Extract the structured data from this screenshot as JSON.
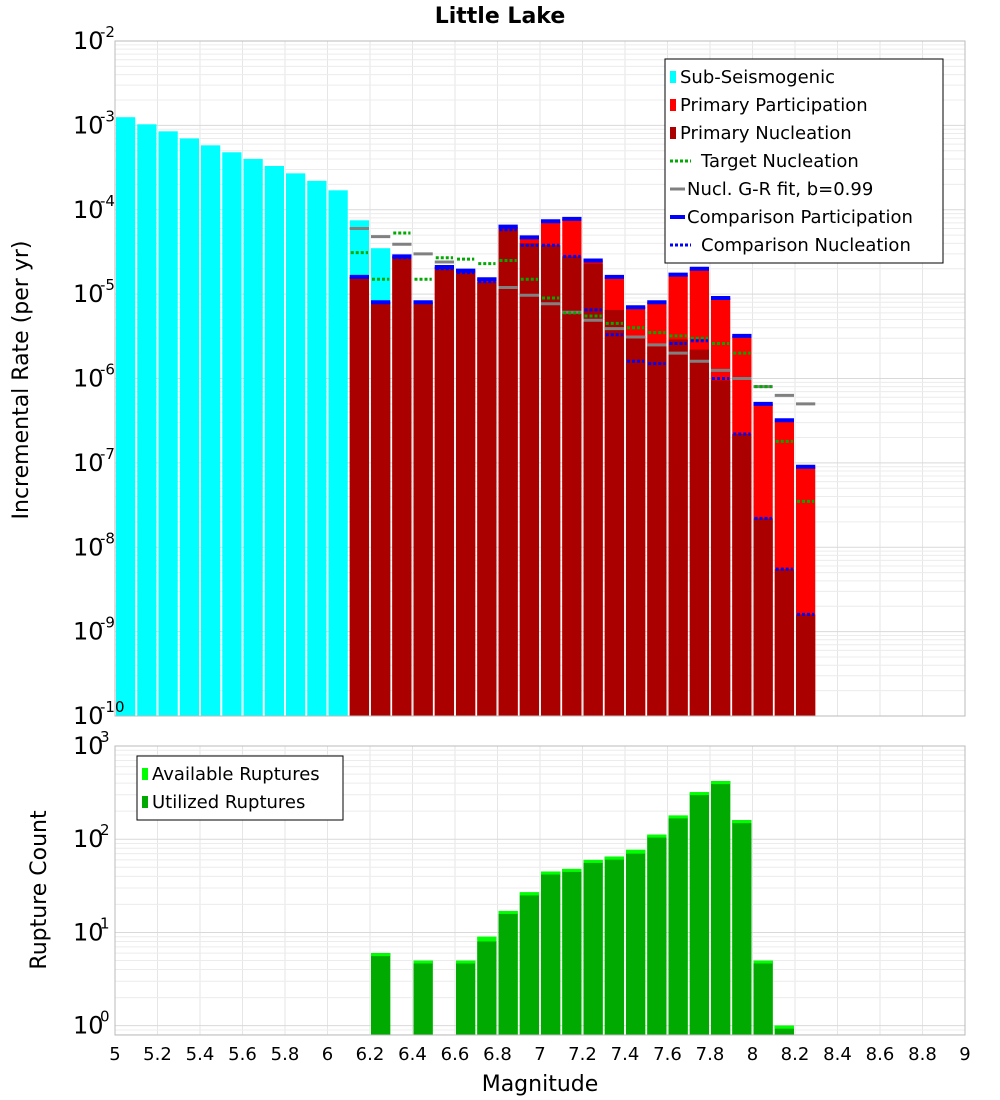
{
  "colors": {
    "sub_seismogenic": "#00ffff",
    "primary_participation": "#ff0000",
    "primary_nucleation": "#aa0000",
    "target_nucleation": "#00aa00",
    "gr_fit": "#808080",
    "comparison": "#0000ff",
    "available": "#00ff00",
    "utilized": "#00aa00"
  },
  "chart_data": [
    {
      "type": "bar",
      "title": "Little Lake",
      "xlabel": "",
      "ylabel": "Incremental Rate (per yr)",
      "yscale": "log",
      "ylim_exp": [
        -10,
        -2
      ],
      "xlim": [
        5,
        9
      ],
      "bin_width": 0.1,
      "y_ticks": [
        {
          "base": "10",
          "exp": "-10",
          "value_exp": -10
        },
        {
          "base": "10",
          "exp": "-9",
          "value_exp": -9
        },
        {
          "base": "10",
          "exp": "-8",
          "value_exp": -8
        },
        {
          "base": "10",
          "exp": "-7",
          "value_exp": -7
        },
        {
          "base": "10",
          "exp": "-6",
          "value_exp": -6
        },
        {
          "base": "10",
          "exp": "-5",
          "value_exp": -5
        },
        {
          "base": "10",
          "exp": "-4",
          "value_exp": -4
        },
        {
          "base": "10",
          "exp": "-3",
          "value_exp": -3
        },
        {
          "base": "10",
          "exp": "-2",
          "value_exp": -2
        }
      ],
      "legend": [
        {
          "label": "Sub-Seismogenic",
          "style": "box",
          "color_key": "sub_seismogenic"
        },
        {
          "label": "Primary Participation",
          "style": "box",
          "color_key": "primary_participation"
        },
        {
          "label": "Primary Nucleation",
          "style": "box",
          "color_key": "primary_nucleation"
        },
        {
          "label": "Target Nucleation",
          "style": "dot",
          "color_key": "target_nucleation"
        },
        {
          "label": "Nucl. G-R fit, b=0.99",
          "style": "line",
          "color_key": "gr_fit"
        },
        {
          "label": "Comparison Participation",
          "style": "thick",
          "color_key": "comparison"
        },
        {
          "label": "Comparison Nucleation",
          "style": "dot",
          "color_key": "comparison"
        }
      ],
      "sub_seismogenic": {
        "x": [
          5.05,
          5.15,
          5.25,
          5.35,
          5.45,
          5.55,
          5.65,
          5.75,
          5.85,
          5.95,
          6.05,
          6.15,
          6.25
        ],
        "values": [
          0.00125,
          0.00103,
          0.00085,
          0.0007,
          0.00058,
          0.00048,
          0.0004,
          0.00033,
          0.00027,
          0.00022,
          0.00017,
          7.5e-05,
          3.5e-05
        ]
      },
      "primary_participation": {
        "x": [
          6.15,
          6.25,
          6.35,
          6.45,
          6.55,
          6.65,
          6.75,
          6.85,
          6.95,
          7.05,
          7.15,
          7.25,
          7.35,
          7.45,
          7.55,
          7.65,
          7.75,
          7.85,
          7.95,
          8.05,
          8.15,
          8.25
        ],
        "values": [
          1.6e-05,
          8e-06,
          2.8e-05,
          8e-06,
          2.1e-05,
          1.9e-05,
          1.5e-05,
          6.3e-05,
          4.7e-05,
          7.3e-05,
          7.8e-05,
          2.5e-05,
          1.6e-05,
          7e-06,
          8e-06,
          1.7e-05,
          2e-05,
          9e-06,
          3.2e-06,
          5e-07,
          3.2e-07,
          9e-08
        ]
      },
      "primary_nucleation": {
        "x": [
          6.15,
          6.25,
          6.35,
          6.45,
          6.55,
          6.65,
          6.75,
          6.85,
          6.95,
          7.05,
          7.15,
          7.25,
          7.35,
          7.45,
          7.55,
          7.65,
          7.75,
          7.85,
          7.95,
          8.05,
          8.15,
          8.25
        ],
        "values": [
          1.6e-05,
          8e-06,
          2.8e-05,
          8e-06,
          2.1e-05,
          1.9e-05,
          1.4e-05,
          6e-05,
          4e-05,
          3.8e-05,
          2.8e-05,
          2.3e-05,
          6.5e-06,
          3.2e-06,
          2.4e-06,
          2.9e-06,
          2.2e-06,
          9.5e-07,
          2.2e-07,
          2.2e-08,
          5.5e-09,
          1.6e-09
        ]
      },
      "comparison_participation": {
        "x": [
          6.15,
          6.25,
          6.35,
          6.45,
          6.55,
          6.65,
          6.75,
          6.85,
          6.95,
          7.05,
          7.15,
          7.25,
          7.35,
          7.45,
          7.55,
          7.65,
          7.75,
          7.85,
          7.95,
          8.05,
          8.15,
          8.25
        ],
        "values": [
          1.6e-05,
          8e-06,
          2.8e-05,
          8e-06,
          2.1e-05,
          1.9e-05,
          1.5e-05,
          6.3e-05,
          4.7e-05,
          7.3e-05,
          7.8e-05,
          2.5e-05,
          1.6e-05,
          7e-06,
          8e-06,
          1.7e-05,
          2e-05,
          9e-06,
          3.2e-06,
          5e-07,
          3.2e-07,
          9e-08
        ]
      },
      "comparison_nucleation": {
        "x": [
          6.15,
          6.25,
          6.35,
          6.45,
          6.55,
          6.65,
          6.75,
          6.85,
          6.95,
          7.05,
          7.15,
          7.25,
          7.35,
          7.45,
          7.55,
          7.65,
          7.75,
          7.85,
          7.95,
          8.05,
          8.15,
          8.25
        ],
        "values": [
          1.6e-05,
          8e-06,
          2.7e-05,
          8e-06,
          2e-05,
          1.8e-05,
          1.4e-05,
          5.8e-05,
          3.8e-05,
          3.8e-05,
          2.8e-05,
          6.5e-06,
          3.3e-06,
          1.6e-06,
          1.5e-06,
          2.6e-06,
          2.8e-06,
          1e-06,
          2.2e-07,
          2.2e-08,
          5.5e-09,
          1.6e-09
        ]
      },
      "target_nucleation": {
        "x": [
          6.15,
          6.25,
          6.35,
          6.45,
          6.55,
          6.65,
          6.75,
          6.85,
          6.95,
          7.05,
          7.15,
          7.25,
          7.35,
          7.45,
          7.55,
          7.65,
          7.75,
          7.85,
          7.95,
          8.05,
          8.15,
          8.25
        ],
        "values": [
          3.1e-05,
          1.5e-05,
          5.3e-05,
          1.5e-05,
          2.7e-05,
          2.6e-05,
          2.3e-05,
          2.5e-05,
          1.5e-05,
          9e-06,
          6e-06,
          5.5e-06,
          4.5e-06,
          4e-06,
          3.5e-06,
          3.2e-06,
          3e-06,
          2.6e-06,
          2e-06,
          8e-07,
          1.8e-07,
          3.5e-08
        ]
      },
      "gr_fit": {
        "x": [
          6.15,
          6.25,
          6.35,
          6.45,
          6.55,
          6.65,
          6.75,
          6.85,
          6.95,
          7.05,
          7.15,
          7.25,
          7.35,
          7.45,
          7.55,
          7.65,
          7.75,
          7.85,
          7.95,
          8.05,
          8.15,
          8.25
        ],
        "values": [
          6e-05,
          4.8e-05,
          3.9e-05,
          3e-05,
          2.4e-05,
          1.9e-05,
          1.5e-05,
          1.2e-05,
          9.7e-06,
          7.7e-06,
          6.1e-06,
          4.9e-06,
          3.9e-06,
          3.1e-06,
          2.5e-06,
          2e-06,
          1.6e-06,
          1.25e-06,
          1e-06,
          8e-07,
          6.3e-07,
          5e-07
        ]
      }
    },
    {
      "type": "bar",
      "title": "",
      "xlabel": "Magnitude",
      "ylabel": "Rupture Count",
      "yscale": "log",
      "ylim_exp": [
        -0.1,
        3
      ],
      "xlim": [
        5,
        9
      ],
      "bin_width": 0.1,
      "y_ticks": [
        {
          "base": "10",
          "exp": "0",
          "value_exp": 0
        },
        {
          "base": "10",
          "exp": "1",
          "value_exp": 1
        },
        {
          "base": "10",
          "exp": "2",
          "value_exp": 2
        },
        {
          "base": "10",
          "exp": "3",
          "value_exp": 3
        }
      ],
      "x_ticks": [
        "5",
        "5.2",
        "5.4",
        "5.6",
        "5.8",
        "6",
        "6.2",
        "6.4",
        "6.6",
        "6.8",
        "7",
        "7.2",
        "7.4",
        "7.6",
        "7.8",
        "8",
        "8.2",
        "8.4",
        "8.6",
        "8.8",
        "9"
      ],
      "legend": [
        {
          "label": "Available Ruptures",
          "style": "box",
          "color_key": "available"
        },
        {
          "label": "Utilized Ruptures",
          "style": "box",
          "color_key": "utilized"
        }
      ],
      "available": {
        "x": [
          6.25,
          6.45,
          6.65,
          6.75,
          6.85,
          6.95,
          7.05,
          7.15,
          7.25,
          7.35,
          7.45,
          7.55,
          7.65,
          7.75,
          7.85,
          7.95,
          8.05,
          8.15
        ],
        "values": [
          6,
          5,
          5,
          9,
          17,
          27,
          45,
          48,
          60,
          65,
          77,
          112,
          180,
          320,
          420,
          160,
          5,
          1
        ]
      },
      "utilized": {
        "x": [
          6.25,
          6.45,
          6.65,
          6.75,
          6.85,
          6.95,
          7.05,
          7.15,
          7.25,
          7.35,
          7.45,
          7.55,
          7.65,
          7.75,
          7.85,
          7.95,
          8.05,
          8.15
        ],
        "values": [
          6,
          5,
          5,
          8,
          16,
          25,
          45,
          48,
          56,
          65,
          70,
          108,
          170,
          310,
          420,
          160,
          5,
          1
        ]
      }
    }
  ]
}
